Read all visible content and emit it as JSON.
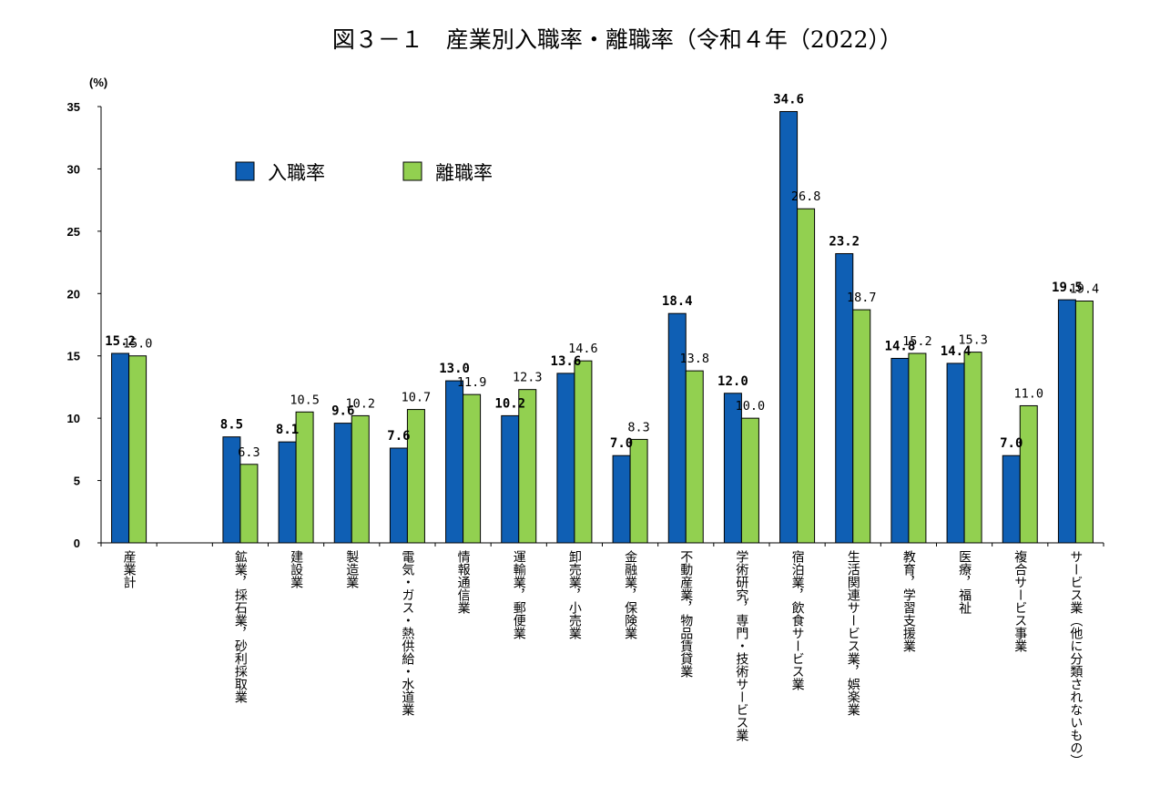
{
  "chart_data": {
    "type": "bar",
    "title": "図３－１　産業別入職率・離職率（令和４年（2022））",
    "ylabel": "(%)",
    "xlabel": "",
    "ylim": [
      0,
      35
    ],
    "yticks": [
      "0",
      "5",
      "10",
      "15",
      "20",
      "25",
      "30",
      "35"
    ],
    "grid": false,
    "legend_position": "top-left",
    "categories": [
      "産業計",
      "",
      "鉱業，採石業，砂利採取業",
      "建設業",
      "製造業",
      "電気・ガス・熱供給・水道業",
      "情報通信業",
      "運輸業，郵便業",
      "卸売業，小売業",
      "金融業，保険業",
      "不動産業，物品賃貸業",
      "学術研究，専門・技術サービス業",
      "宿泊業，飲食サービス業",
      "生活関連サービス業，娯楽業",
      "教育，学習支援業",
      "医療，福祉",
      "複合サービス事業",
      "サービス業（他に分類されないもの）"
    ],
    "series": [
      {
        "name": "入職率",
        "color": "#0f5fb4",
        "values": [
          15.2,
          null,
          8.5,
          8.1,
          9.6,
          7.6,
          13.0,
          10.2,
          13.6,
          7.0,
          18.4,
          12.0,
          34.6,
          23.2,
          14.8,
          14.4,
          7.0,
          19.5
        ],
        "labels": [
          "15.2",
          "",
          "8.5",
          "8.1",
          "9.6",
          "7.6",
          "13.0",
          "10.2",
          "13.6",
          "7.0",
          "18.4",
          "12.0",
          "34.6",
          "23.2",
          "14.8",
          "14.4",
          "7.0",
          "19.5"
        ]
      },
      {
        "name": "離職率",
        "color": "#92d050",
        "values": [
          15.0,
          null,
          6.3,
          10.5,
          10.2,
          10.7,
          11.9,
          12.3,
          14.6,
          8.3,
          13.8,
          10.0,
          26.8,
          18.7,
          15.2,
          15.3,
          11.0,
          19.4
        ],
        "labels": [
          "15.0",
          "",
          "6.3",
          "10.5",
          "10.2",
          "10.7",
          "11.9",
          "12.3",
          "14.6",
          "8.3",
          "13.8",
          "10.0",
          "26.8",
          "18.7",
          "15.2",
          "15.3",
          "11.0",
          "19.4"
        ]
      }
    ]
  }
}
